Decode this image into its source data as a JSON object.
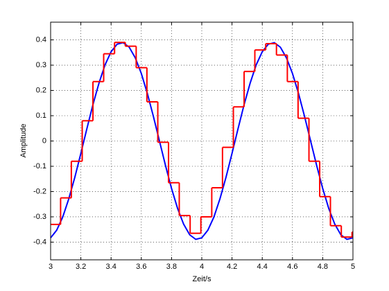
{
  "chart_data": {
    "type": "line",
    "xlabel": "Zeit/s",
    "ylabel": "Amplitude",
    "xlim": [
      3,
      5
    ],
    "ylim": [
      -0.47,
      0.47
    ],
    "xticks": [
      3,
      3.2,
      3.4,
      3.6,
      3.8,
      4,
      4.2,
      4.4,
      4.6,
      4.8,
      5
    ],
    "yticks": [
      -0.4,
      -0.3,
      -0.2,
      -0.1,
      0,
      0.1,
      0.2,
      0.3,
      0.4
    ],
    "grid": true,
    "series": [
      {
        "color": "#0000ff",
        "step": false,
        "x": [
          3,
          3.04,
          3.08,
          3.12,
          3.16,
          3.2,
          3.24,
          3.28,
          3.32,
          3.36,
          3.4,
          3.44,
          3.48,
          3.52,
          3.56,
          3.6,
          3.64,
          3.68,
          3.72,
          3.76,
          3.8,
          3.84,
          3.88,
          3.92,
          3.96,
          4,
          4.04,
          4.08,
          4.12,
          4.16,
          4.2,
          4.24,
          4.28,
          4.32,
          4.36,
          4.4,
          4.44,
          4.48,
          4.52,
          4.56,
          4.6,
          4.64,
          4.68,
          4.72,
          4.76,
          4.8,
          4.84,
          4.88,
          4.92,
          4.96,
          5
        ],
        "values": [
          -0.383,
          -0.353,
          -0.301,
          -0.229,
          -0.144,
          -0.049,
          0.049,
          0.144,
          0.229,
          0.301,
          0.353,
          0.383,
          0.389,
          0.371,
          0.329,
          0.267,
          0.188,
          0.097,
          0,
          -0.097,
          -0.188,
          -0.267,
          -0.329,
          -0.371,
          -0.389,
          -0.383,
          -0.353,
          -0.301,
          -0.229,
          -0.144,
          -0.049,
          0.049,
          0.144,
          0.229,
          0.301,
          0.353,
          0.383,
          0.389,
          0.371,
          0.329,
          0.267,
          0.188,
          0.097,
          0,
          -0.097,
          -0.188,
          -0.267,
          -0.329,
          -0.371,
          -0.389,
          -0.383
        ]
      },
      {
        "color": "#ff0000",
        "step": true,
        "x": [
          3,
          3.066,
          3.137,
          3.209,
          3.28,
          3.351,
          3.423,
          3.494,
          3.566,
          3.637,
          3.709,
          3.78,
          3.851,
          3.923,
          3.994,
          4.066,
          4.137,
          4.209,
          4.28,
          4.351,
          4.423,
          4.494,
          4.566,
          4.637,
          4.709,
          4.78,
          4.851,
          4.923,
          4.994
        ],
        "values": [
          -0.33,
          -0.225,
          -0.08,
          0.08,
          0.235,
          0.345,
          0.39,
          0.375,
          0.29,
          0.155,
          -0.005,
          -0.165,
          -0.295,
          -0.365,
          -0.3,
          -0.185,
          -0.025,
          0.135,
          0.275,
          0.36,
          0.385,
          0.34,
          0.235,
          0.09,
          -0.08,
          -0.22,
          -0.335,
          -0.38,
          -0.36
        ]
      }
    ]
  }
}
